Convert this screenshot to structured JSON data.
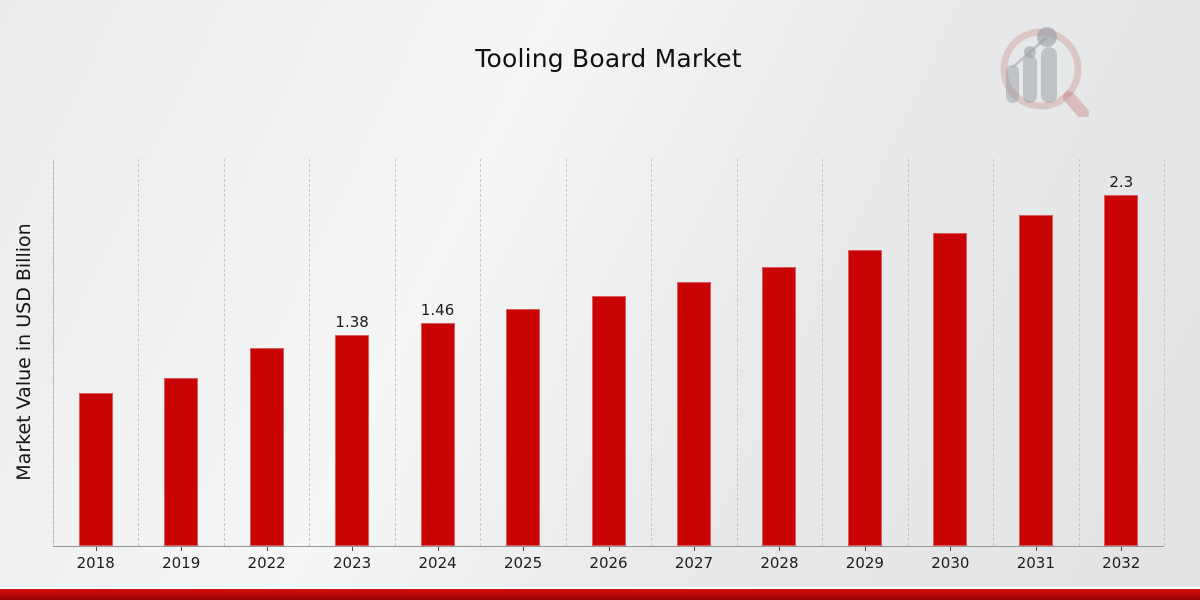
{
  "page": {
    "title": "Tooling Board Market",
    "accent_color": "#c80404",
    "bottom_bar_color": "#b30606",
    "background_color": "#ebedee",
    "logo_name": "magnifier-bar-chart-watermark-logo"
  },
  "chart_data": {
    "type": "bar",
    "title": "Tooling Board Market",
    "xlabel": "",
    "ylabel": "Market Value in USD Billion",
    "ylim": [
      0,
      2.535
    ],
    "grid": "vertical-dashed",
    "legend": "none",
    "bar_color": "#c80404",
    "categories": [
      "2018",
      "2019",
      "2022",
      "2023",
      "2024",
      "2025",
      "2026",
      "2027",
      "2028",
      "2029",
      "2030",
      "2031",
      "2032"
    ],
    "values": [
      1.0,
      1.1,
      1.3,
      1.38,
      1.46,
      1.55,
      1.64,
      1.73,
      1.83,
      1.94,
      2.05,
      2.17,
      2.3
    ],
    "data_labels": [
      "",
      "",
      "",
      "1.38",
      "1.46",
      "",
      "",
      "",
      "",
      "",
      "",
      "",
      "2.3"
    ]
  }
}
